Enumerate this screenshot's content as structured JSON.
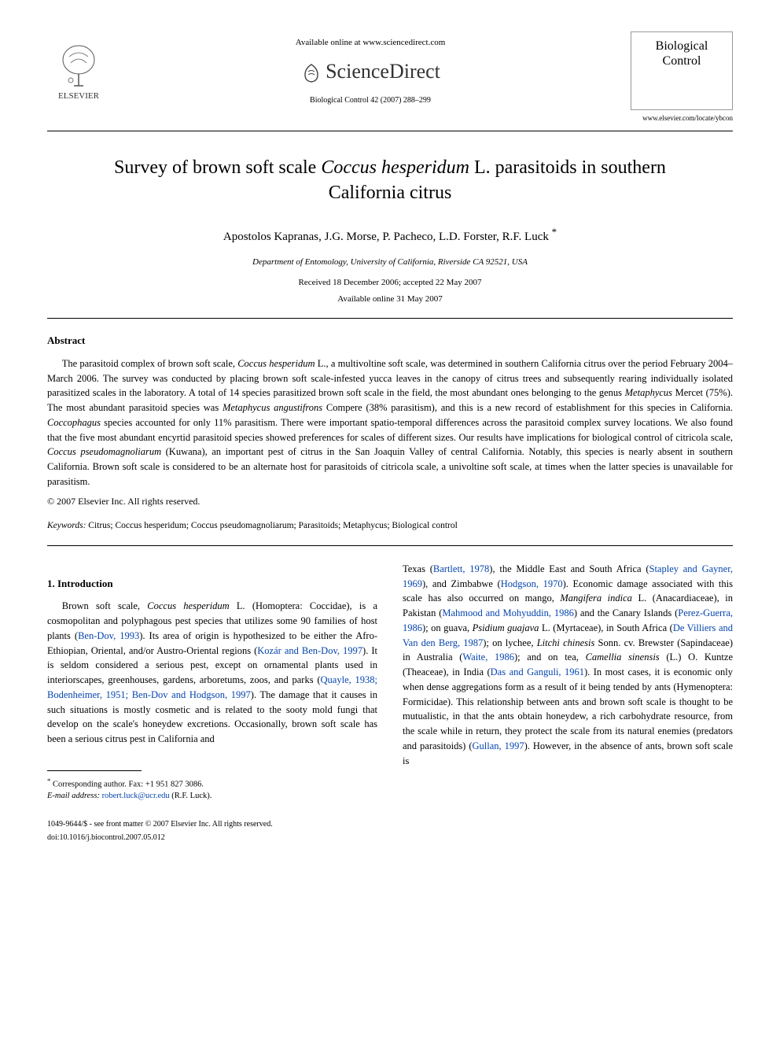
{
  "header": {
    "available_text": "Available online at www.sciencedirect.com",
    "sciencedirect_label": "ScienceDirect",
    "journal_citation": "Biological Control 42 (2007) 288–299",
    "elsevier_label": "ELSEVIER",
    "journal_box_line1": "Biological",
    "journal_box_line2": "Control",
    "journal_url": "www.elsevier.com/locate/ybcon"
  },
  "article": {
    "title_part1": "Survey of brown soft scale ",
    "title_italic": "Coccus hesperidum",
    "title_part2": " L. parasitoids in southern California citrus",
    "authors": "Apostolos Kapranas, J.G. Morse, P. Pacheco, L.D. Forster, R.F. Luck ",
    "corr_marker": "*",
    "affiliation": "Department of Entomology, University of California, Riverside CA 92521, USA",
    "received": "Received 18 December 2006; accepted 22 May 2007",
    "available_online": "Available online 31 May 2007"
  },
  "abstract": {
    "heading": "Abstract",
    "body_segments": [
      {
        "t": "The parasitoid complex of brown soft scale, "
      },
      {
        "t": "Coccus hesperidum",
        "i": true
      },
      {
        "t": " L., a multivoltine soft scale, was determined in southern California citrus over the period February 2004–March 2006. The survey was conducted by placing brown soft scale-infested yucca leaves in the canopy of citrus trees and subsequently rearing individually isolated parasitized scales in the laboratory. A total of 14 species parasitized brown soft scale in the field, the most abundant ones belonging to the genus "
      },
      {
        "t": "Metaphycus",
        "i": true
      },
      {
        "t": " Mercet (75%). The most abundant parasitoid species was "
      },
      {
        "t": "Metaphycus angustifrons",
        "i": true
      },
      {
        "t": " Compere (38% parasitism), and this is a new record of establishment for this species in California. "
      },
      {
        "t": "Coccophagus",
        "i": true
      },
      {
        "t": " species accounted for only 11% parasitism. There were important spatio-temporal differences across the parasitoid complex survey locations. We also found that the five most abundant encyrtid parasitoid species showed preferences for scales of different sizes. Our results have implications for biological control of citricola scale, "
      },
      {
        "t": "Coccus pseudomagnoliarum",
        "i": true
      },
      {
        "t": " (Kuwana), an important pest of citrus in the San Joaquin Valley of central California. Notably, this species is nearly absent in southern California. Brown soft scale is considered to be an alternate host for parasitoids of citricola scale, a univoltine soft scale, at times when the latter species is unavailable for parasitism."
      }
    ],
    "copyright": "© 2007 Elsevier Inc. All rights reserved."
  },
  "keywords": {
    "label": "Keywords: ",
    "text": "Citrus; Coccus hesperidum; Coccus pseudomagnoliarum; Parasitoids; Metaphycus; Biological control"
  },
  "intro": {
    "heading": "1. Introduction",
    "left_segments": [
      {
        "t": "Brown soft scale, "
      },
      {
        "t": "Coccus hesperidum",
        "i": true
      },
      {
        "t": " L. (Homoptera: Coccidae), is a cosmopolitan and polyphagous pest species that utilizes some 90 families of host plants ("
      },
      {
        "t": "Ben-Dov, 1993",
        "r": true
      },
      {
        "t": "). Its area of origin is hypothesized to be either the Afro-Ethiopian, Oriental, and/or Austro-Oriental regions ("
      },
      {
        "t": "Kozár and Ben-Dov, 1997",
        "r": true
      },
      {
        "t": "). It is seldom considered a serious pest, except on ornamental plants used in interiorscapes, greenhouses, gardens, arboretums, zoos, and parks ("
      },
      {
        "t": "Quayle, 1938; Bodenheimer, 1951; Ben-Dov and Hodgson, 1997",
        "r": true
      },
      {
        "t": "). The damage that it causes in such situations is mostly cosmetic and is related to the sooty mold fungi that develop on the scale's honeydew excretions. Occasionally, brown soft scale has been a serious citrus pest in California and"
      }
    ],
    "right_segments": [
      {
        "t": "Texas ("
      },
      {
        "t": "Bartlett, 1978",
        "r": true
      },
      {
        "t": "), the Middle East and South Africa ("
      },
      {
        "t": "Stapley and Gayner, 1969",
        "r": true
      },
      {
        "t": "), and Zimbabwe ("
      },
      {
        "t": "Hodgson, 1970",
        "r": true
      },
      {
        "t": "). Economic damage associated with this scale has also occurred on mango, "
      },
      {
        "t": "Mangifera indica",
        "i": true
      },
      {
        "t": " L. (Anacardiaceae), in Pakistan ("
      },
      {
        "t": "Mahmood and Mohyuddin, 1986",
        "r": true
      },
      {
        "t": ") and the Canary Islands ("
      },
      {
        "t": "Perez-Guerra, 1986",
        "r": true
      },
      {
        "t": "); on guava, "
      },
      {
        "t": "Psidium guajava",
        "i": true
      },
      {
        "t": " L. (Myrtaceae), in South Africa ("
      },
      {
        "t": "De Villiers and Van den Berg, 1987",
        "r": true
      },
      {
        "t": "); on lychee, "
      },
      {
        "t": "Litchi chinesis",
        "i": true
      },
      {
        "t": " Sonn. cv. Brewster (Sapindaceae) in Australia ("
      },
      {
        "t": "Waite, 1986",
        "r": true
      },
      {
        "t": "); and on tea, "
      },
      {
        "t": "Camellia sinensis",
        "i": true
      },
      {
        "t": " (L.) O. Kuntze (Theaceae), in India ("
      },
      {
        "t": "Das and Ganguli, 1961",
        "r": true
      },
      {
        "t": "). In most cases, it is economic only when dense aggregations form as a result of it being tended by ants (Hymenoptera: Formicidae). This relationship between ants and brown soft scale is thought to be mutualistic, in that the ants obtain honeydew, a rich carbohydrate resource, from the scale while in return, they protect the scale from its natural enemies (predators and parasitoids) ("
      },
      {
        "t": "Gullan, 1997",
        "r": true
      },
      {
        "t": "). However, in the absence of ants, brown soft scale is"
      }
    ]
  },
  "footnote": {
    "corr_label": "Corresponding author. Fax: +1 951 827 3086.",
    "email_label": "E-mail address: ",
    "email": "robert.luck@ucr.edu",
    "email_who": " (R.F. Luck)."
  },
  "bottom": {
    "issn": "1049-9644/$ - see front matter © 2007 Elsevier Inc. All rights reserved.",
    "doi": "doi:10.1016/j.biocontrol.2007.05.012"
  },
  "colors": {
    "text": "#000000",
    "link": "#0645ad",
    "bg": "#ffffff",
    "border": "#999999"
  },
  "typography": {
    "title_fontsize": 24,
    "author_fontsize": 15,
    "body_fontsize": 12.5,
    "small_fontsize": 11
  }
}
